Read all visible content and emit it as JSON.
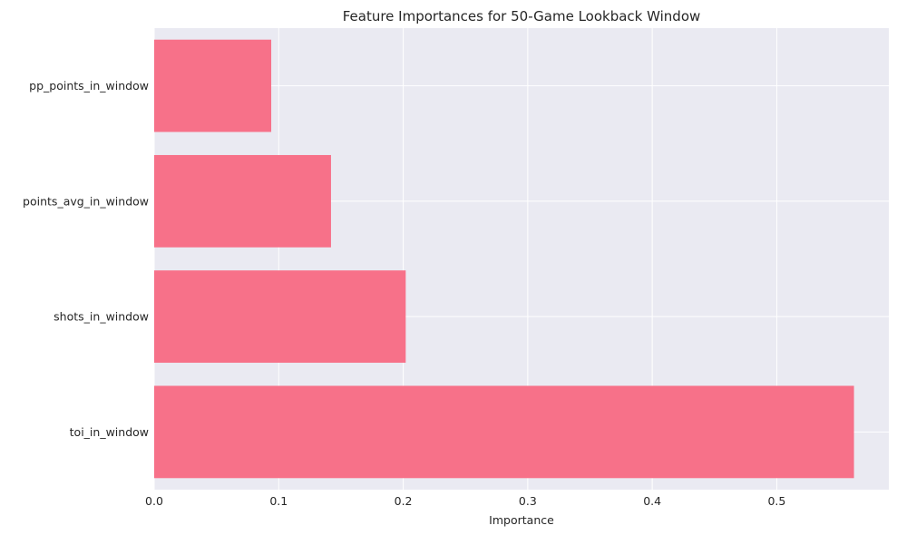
{
  "chart_data": {
    "type": "bar",
    "orientation": "horizontal",
    "title": "Feature Importances for 50-Game Lookback Window",
    "xlabel": "Importance",
    "ylabel": "",
    "categories": [
      "pp_points_in_window",
      "points_avg_in_window",
      "shots_in_window",
      "toi_in_window"
    ],
    "values": [
      0.094,
      0.142,
      0.202,
      0.562
    ],
    "xlim": [
      0,
      0.59
    ],
    "xticks": [
      0.0,
      0.1,
      0.2,
      0.3,
      0.4,
      0.5
    ],
    "xtick_labels": [
      "0.0",
      "0.1",
      "0.2",
      "0.3",
      "0.4",
      "0.5"
    ],
    "grid": true,
    "legend": "none",
    "colors": {
      "bar": "#f77189",
      "plot_background": "#eaeaf2",
      "grid": "#ffffff",
      "text": "#262626"
    }
  }
}
